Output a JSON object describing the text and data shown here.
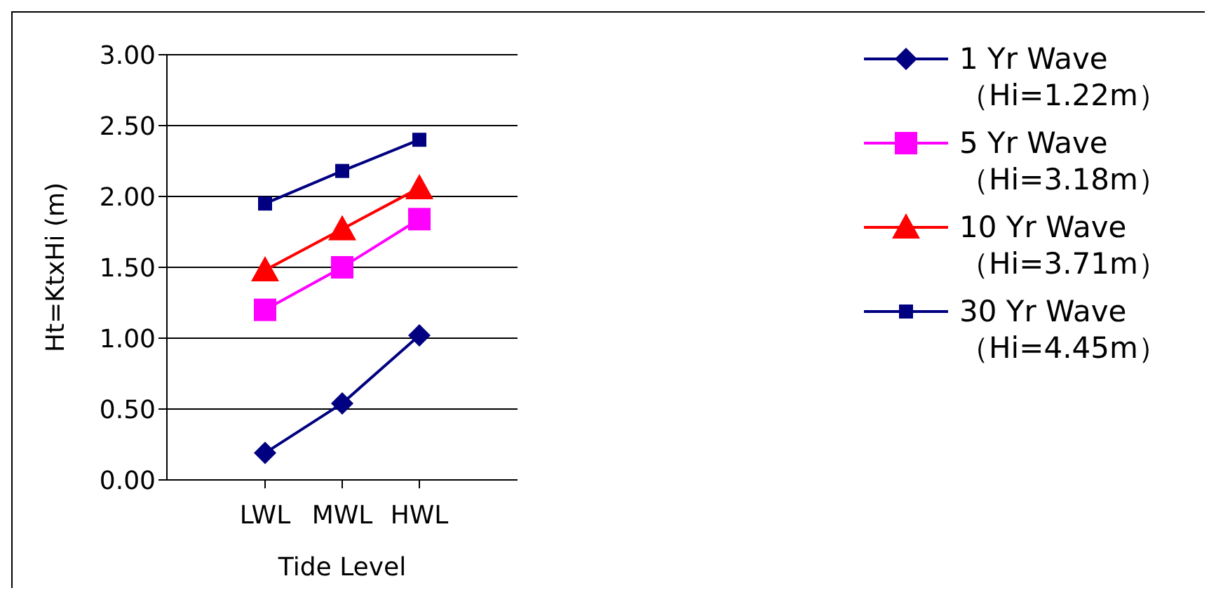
{
  "chart_data": {
    "type": "line",
    "xlabel": "Tide Level",
    "ylabel": "Ht=KtxHi (m)",
    "categories": [
      "LWL",
      "MWL",
      "HWL"
    ],
    "series": [
      {
        "name": "1 Yr Wave （Hi=1.22m）",
        "color": "#000080",
        "marker": "diamond",
        "values": [
          0.19,
          0.54,
          1.02
        ]
      },
      {
        "name": "5 Yr Wave （Hi=3.18m）",
        "color": "#ff00ff",
        "marker": "square",
        "values": [
          1.2,
          1.5,
          1.84
        ]
      },
      {
        "name": "10 Yr Wave （Hi=3.71m）",
        "color": "#ff0000",
        "marker": "triangle",
        "values": [
          1.48,
          1.77,
          2.06
        ]
      },
      {
        "name": "30 Yr Wave （Hi=4.45m）",
        "color": "#000080",
        "marker": "square",
        "values": [
          1.95,
          2.18,
          2.4
        ]
      }
    ],
    "ylim": [
      0,
      3
    ],
    "yticks": [
      {
        "value": 0,
        "label": "0.00"
      },
      {
        "value": 0.5,
        "label": "0.50"
      },
      {
        "value": 1,
        "label": "1.00"
      },
      {
        "value": 1.5,
        "label": "1.50"
      },
      {
        "value": 2,
        "label": "2.00"
      },
      {
        "value": 2.5,
        "label": "2.50"
      },
      {
        "value": 3,
        "label": "3.00"
      }
    ],
    "grid": "y",
    "legend": "right"
  }
}
